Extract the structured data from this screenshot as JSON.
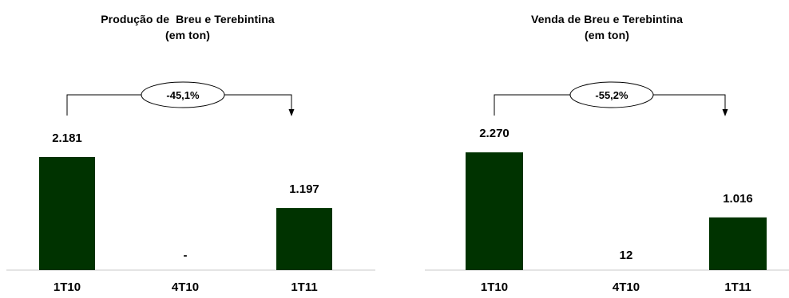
{
  "chart_data": [
    {
      "type": "bar",
      "title": [
        "Produção de  Breu e Terebintina",
        "(em ton)"
      ],
      "categories": [
        "1T10",
        "4T10",
        "1T11"
      ],
      "values": [
        2181,
        0,
        1197
      ],
      "value_labels": [
        "2.181",
        "-",
        "1.197"
      ],
      "change_annotation": "-45,1%",
      "bar_color": "#003300",
      "ylim": [
        0,
        2400
      ]
    },
    {
      "type": "bar",
      "title": [
        "Venda de Breu e Terebintina",
        "(em ton)"
      ],
      "categories": [
        "1T10",
        "4T10",
        "1T11"
      ],
      "values": [
        2270,
        12,
        1016
      ],
      "value_labels": [
        "2.270",
        "12",
        "1.016"
      ],
      "change_annotation": "-55,2%",
      "bar_color": "#003300",
      "ylim": [
        0,
        2400
      ]
    }
  ]
}
